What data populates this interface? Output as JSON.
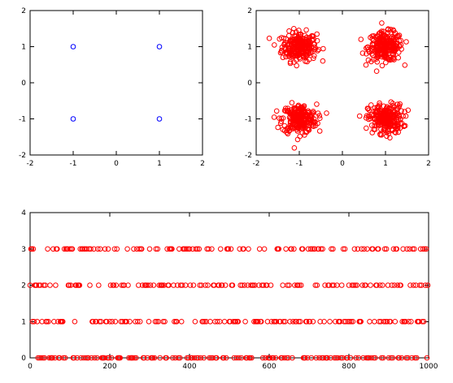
{
  "colors": {
    "constellation": "#0000ff",
    "points": "#ff0000",
    "axis": "#000000"
  },
  "chart_data": [
    {
      "type": "scatter",
      "title": "",
      "xlabel": "",
      "ylabel": "",
      "xlim": [
        -2,
        2
      ],
      "ylim": [
        -2,
        2
      ],
      "xticks": [
        "-2",
        "-1",
        "0",
        "1",
        "2"
      ],
      "yticks": [
        "-2",
        "-1",
        "0",
        "1",
        "2"
      ],
      "marker": "circle-open",
      "grid": false,
      "series": [
        {
          "points": [
            [
              -1,
              1
            ],
            [
              1,
              1
            ],
            [
              -1,
              -1
            ],
            [
              1,
              -1
            ]
          ]
        }
      ]
    },
    {
      "type": "scatter",
      "title": "",
      "xlabel": "",
      "ylabel": "",
      "xlim": [
        -2,
        2
      ],
      "ylim": [
        -2,
        2
      ],
      "xticks": [
        "-2",
        "-1",
        "0",
        "1",
        "2"
      ],
      "yticks": [
        "-2",
        "-1",
        "0",
        "1",
        "2"
      ],
      "marker": "circle-open",
      "grid": false,
      "description_of_clusters": [
        {
          "center": [
            -1,
            1
          ],
          "spread": 0.2,
          "count": 250
        },
        {
          "center": [
            1,
            1
          ],
          "spread": 0.2,
          "count": 250
        },
        {
          "center": [
            -1,
            -1
          ],
          "spread": 0.2,
          "count": 250
        },
        {
          "center": [
            1,
            -1
          ],
          "spread": 0.2,
          "count": 250
        }
      ]
    },
    {
      "type": "scatter",
      "title": "",
      "xlabel": "",
      "ylabel": "",
      "xlim": [
        0,
        1000
      ],
      "ylim": [
        0,
        4
      ],
      "xticks": [
        "0",
        "200",
        "400",
        "600",
        "800",
        "1000"
      ],
      "yticks": [
        "0",
        "1",
        "2",
        "3",
        "4"
      ],
      "marker": "circle-open",
      "grid": false,
      "levels": [
        0,
        1,
        2,
        3
      ],
      "num_samples": 1000
    }
  ]
}
